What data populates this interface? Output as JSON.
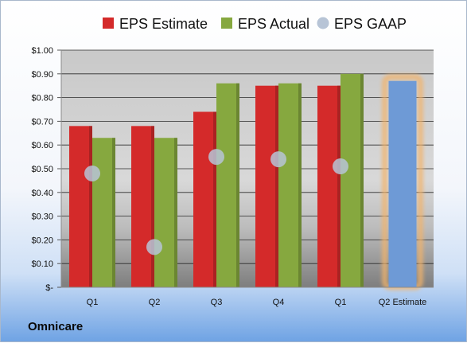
{
  "company": "Omnicare",
  "chart_data": {
    "type": "bar",
    "categories": [
      "Q1",
      "Q2",
      "Q3",
      "Q4",
      "Q1",
      "Q2 Estimate"
    ],
    "series": [
      {
        "name": "EPS Estimate",
        "kind": "bar",
        "color": "#d42a2a",
        "values": [
          0.68,
          0.68,
          0.74,
          0.85,
          0.85,
          null
        ]
      },
      {
        "name": "EPS Actual",
        "kind": "bar",
        "color": "#86a83f",
        "values": [
          0.63,
          0.63,
          0.86,
          0.86,
          0.9,
          null
        ]
      },
      {
        "name": "EPS GAAP",
        "kind": "point",
        "color": "#b7c4d6",
        "values": [
          0.48,
          0.17,
          0.55,
          0.54,
          0.51,
          null
        ]
      },
      {
        "name": "",
        "kind": "highlight-bar",
        "color": "#6e9ad6",
        "glow": "#f2b36b",
        "values": [
          null,
          null,
          null,
          null,
          null,
          0.87
        ]
      }
    ],
    "yticks": [
      "$1.00",
      "$0.90",
      "$0.80",
      "$0.70",
      "$0.60",
      "$0.50",
      "$0.40",
      "$0.30",
      "$0.20",
      "$0.10",
      "$-"
    ],
    "ylim": [
      0,
      1.0
    ],
    "grid": true,
    "legend": "top"
  }
}
